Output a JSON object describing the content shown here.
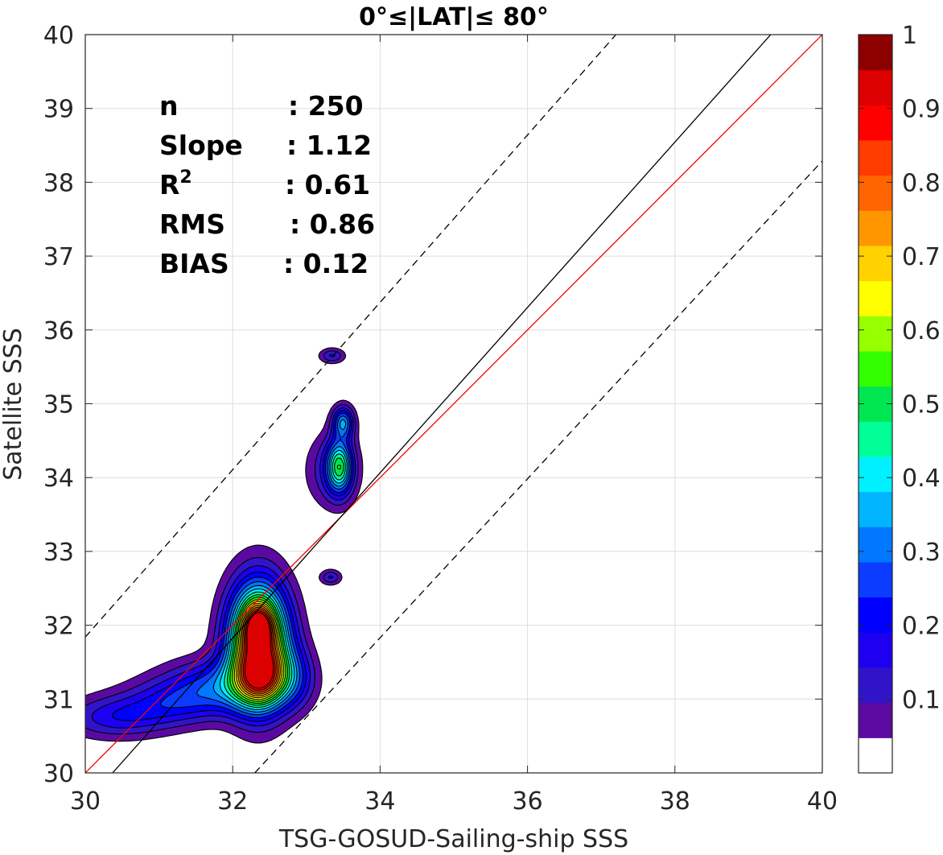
{
  "chart_data": {
    "type": "contour",
    "title": "0°≤|LAT|≤ 80°",
    "xlabel": "TSG-GOSUD-Sailing-ship SSS",
    "ylabel": "Satellite SSS",
    "xlim": [
      30,
      40
    ],
    "ylim": [
      30,
      40
    ],
    "x_ticks": [
      "30",
      "32",
      "34",
      "36",
      "38",
      "40"
    ],
    "y_ticks": [
      "30",
      "31",
      "32",
      "33",
      "34",
      "35",
      "36",
      "37",
      "38",
      "39",
      "40"
    ],
    "grid": true,
    "stats": [
      {
        "label": "n",
        "value": ": 250"
      },
      {
        "label": "Slope",
        "value": ": 1.12"
      },
      {
        "label": "R",
        "sup": "2",
        "value": ": 0.61"
      },
      {
        "label": "RMS",
        "value": ": 0.86"
      },
      {
        "label": "BIAS",
        "value": ": 0.12"
      }
    ],
    "lines": [
      {
        "name": "one-to-one",
        "color": "#ff0000",
        "style": "solid",
        "points": [
          [
            30,
            30
          ],
          [
            40,
            40
          ]
        ]
      },
      {
        "name": "regression",
        "color": "#000000",
        "style": "solid",
        "points": [
          [
            30.37,
            30
          ],
          [
            39.3,
            40
          ]
        ]
      },
      {
        "name": "upper-bound",
        "color": "#000000",
        "style": "dashed",
        "points": [
          [
            30,
            31.84
          ],
          [
            37.2,
            40
          ]
        ]
      },
      {
        "name": "lower-bound",
        "color": "#000000",
        "style": "dashed",
        "points": [
          [
            32.3,
            30
          ],
          [
            40,
            38.29
          ]
        ]
      }
    ],
    "density_blobs": [
      {
        "cx": 32.35,
        "cy": 31.75,
        "sx": 0.28,
        "sy": 0.55,
        "w": 0.95
      },
      {
        "cx": 32.35,
        "cy": 32.0,
        "sx": 0.13,
        "sy": 0.2,
        "w": 0.35
      },
      {
        "cx": 32.4,
        "cy": 31.3,
        "sx": 0.22,
        "sy": 0.25,
        "w": 0.3
      },
      {
        "cx": 31.9,
        "cy": 31.2,
        "sx": 0.55,
        "sy": 0.25,
        "w": 0.25
      },
      {
        "cx": 31.2,
        "cy": 30.95,
        "sx": 0.5,
        "sy": 0.22,
        "w": 0.17
      },
      {
        "cx": 30.4,
        "cy": 30.75,
        "sx": 0.5,
        "sy": 0.2,
        "w": 0.17
      },
      {
        "cx": 32.85,
        "cy": 31.3,
        "sx": 0.2,
        "sy": 0.3,
        "w": 0.15
      },
      {
        "cx": 33.45,
        "cy": 34.15,
        "sx": 0.12,
        "sy": 0.25,
        "w": 0.43
      },
      {
        "cx": 33.5,
        "cy": 34.75,
        "sx": 0.1,
        "sy": 0.15,
        "w": 0.33
      },
      {
        "cx": 33.35,
        "cy": 34.1,
        "sx": 0.25,
        "sy": 0.35,
        "w": 0.14
      },
      {
        "cx": 33.35,
        "cy": 35.65,
        "sx": 0.12,
        "sy": 0.07,
        "w": 0.16
      },
      {
        "cx": 33.33,
        "cy": 32.65,
        "sx": 0.1,
        "sy": 0.07,
        "w": 0.16
      }
    ],
    "contour_levels": [
      0.05,
      0.1,
      0.15,
      0.2,
      0.25,
      0.3,
      0.35,
      0.4,
      0.45,
      0.5,
      0.55,
      0.6,
      0.65,
      0.7,
      0.75,
      0.8,
      0.85,
      0.9,
      0.95
    ],
    "colorbar": {
      "ticks": [
        "0.1",
        "0.2",
        "0.3",
        "0.4",
        "0.5",
        "0.6",
        "0.7",
        "0.8",
        "0.9",
        "1"
      ],
      "range": [
        0,
        1
      ],
      "colors": [
        "#ffffff",
        "#5a0aa0",
        "#3214c8",
        "#1e00f0",
        "#0000ff",
        "#0b3cff",
        "#0078ff",
        "#00b4ff",
        "#00f0ff",
        "#00ff96",
        "#00e650",
        "#32ff00",
        "#96ff00",
        "#ffff00",
        "#ffd200",
        "#ff9600",
        "#ff6400",
        "#ff3c00",
        "#ff0000",
        "#dc0000",
        "#8c0000"
      ]
    }
  }
}
